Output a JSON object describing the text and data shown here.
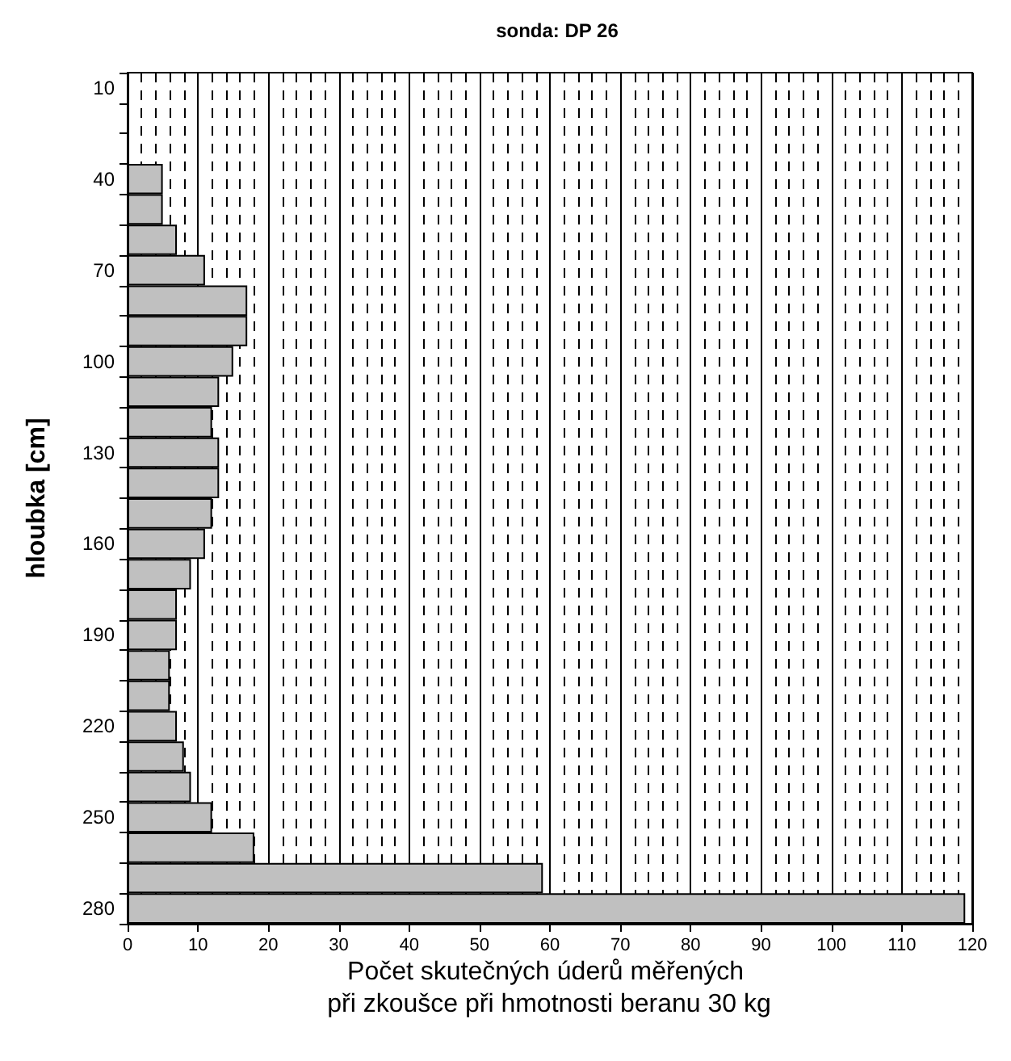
{
  "chart_data": {
    "type": "bar",
    "orientation": "horizontal",
    "title": "sonda: DP 26",
    "xlabel": "Počet skutečných úderů měřených při zkoušce při hmotnosti beranu 30 kg",
    "ylabel": "hloubka [cm]",
    "categories": [
      "10",
      null,
      null,
      "40",
      null,
      null,
      "70",
      null,
      null,
      "100",
      null,
      null,
      "130",
      null,
      null,
      "160",
      null,
      null,
      "190",
      null,
      null,
      "220",
      null,
      null,
      "250",
      null,
      null,
      "280"
    ],
    "values": [
      0,
      0,
      0,
      5,
      5,
      7,
      11,
      17,
      17,
      15,
      13,
      12,
      13,
      13,
      12,
      11,
      9,
      7,
      7,
      6,
      6,
      7,
      8,
      9,
      12,
      18,
      59,
      119
    ],
    "color": "#c0c0c0",
    "xlim": [
      0,
      120
    ],
    "xticks": [
      0,
      10,
      20,
      30,
      40,
      50,
      60,
      70,
      80,
      90,
      100,
      110,
      120
    ],
    "grid": "x"
  }
}
